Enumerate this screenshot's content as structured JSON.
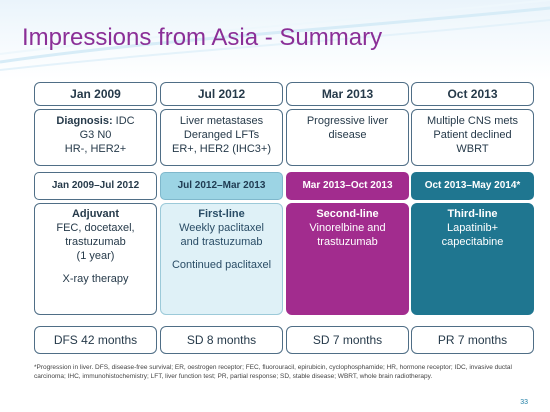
{
  "title": "Impressions from Asia - Summary",
  "columns": [
    {
      "date": "Jan 2009",
      "diagnosis": {
        "bold_label": "Diagnosis:",
        "line1_rest": " IDC",
        "line2": "G3 N0",
        "line3": "HR-, HER2+"
      },
      "range": "Jan 2009–Jul 2012",
      "treatment": {
        "heading": "Adjuvant",
        "lines": [
          "FEC, docetaxel,",
          "trastuzumab",
          "(1 year)"
        ],
        "extra": "X-ray therapy"
      },
      "outcome": "DFS 42 months"
    },
    {
      "date": "Jul 2012",
      "diagnosis": {
        "line1": "Liver metastases",
        "line2": "Deranged LFTs",
        "line3": "ER+, HER2 (IHC3+)"
      },
      "range": "Jul 2012–Mar 2013",
      "treatment": {
        "heading": "First-line",
        "lines": [
          "Weekly paclitaxel",
          "and trastuzumab"
        ],
        "extra": "Continued paclitaxel"
      },
      "outcome": "SD 8 months"
    },
    {
      "date": "Mar 2013",
      "diagnosis": {
        "line1": "Progressive liver",
        "line2": "disease"
      },
      "range": "Mar 2013–Oct 2013",
      "treatment": {
        "heading": "Second-line",
        "lines": [
          "Vinorelbine and",
          "trastuzumab"
        ]
      },
      "outcome": "SD 7 months"
    },
    {
      "date": "Oct 2013",
      "diagnosis": {
        "line1": "Multiple CNS mets",
        "line2": "Patient declined",
        "line3": "WBRT"
      },
      "range": "Oct 2013–May 2014*",
      "treatment": {
        "heading": "Third-line",
        "lines": [
          "Lapatinib+",
          "capecitabine"
        ]
      },
      "outcome": "PR 7 months"
    }
  ],
  "footnote": "*Progression in liver. DFS, disease-free survival; ER, oestrogen receptor; FEC, fluorouracil, epirubicin, cyclophosphamide; HR, hormone receptor;  IDC, invasive ductal carcinoma; IHC, immunohistochemistry; LFT, liver function test; PR, partial response; SD, stable disease; WBRT, whole brain radiotherapy.",
  "page_number": "33",
  "colors": {
    "title": "#8b2f97",
    "first_line": "#9cd4e4",
    "second_line": "#a22c8e",
    "third_line": "#1f7690",
    "border": "#4f6e86"
  }
}
